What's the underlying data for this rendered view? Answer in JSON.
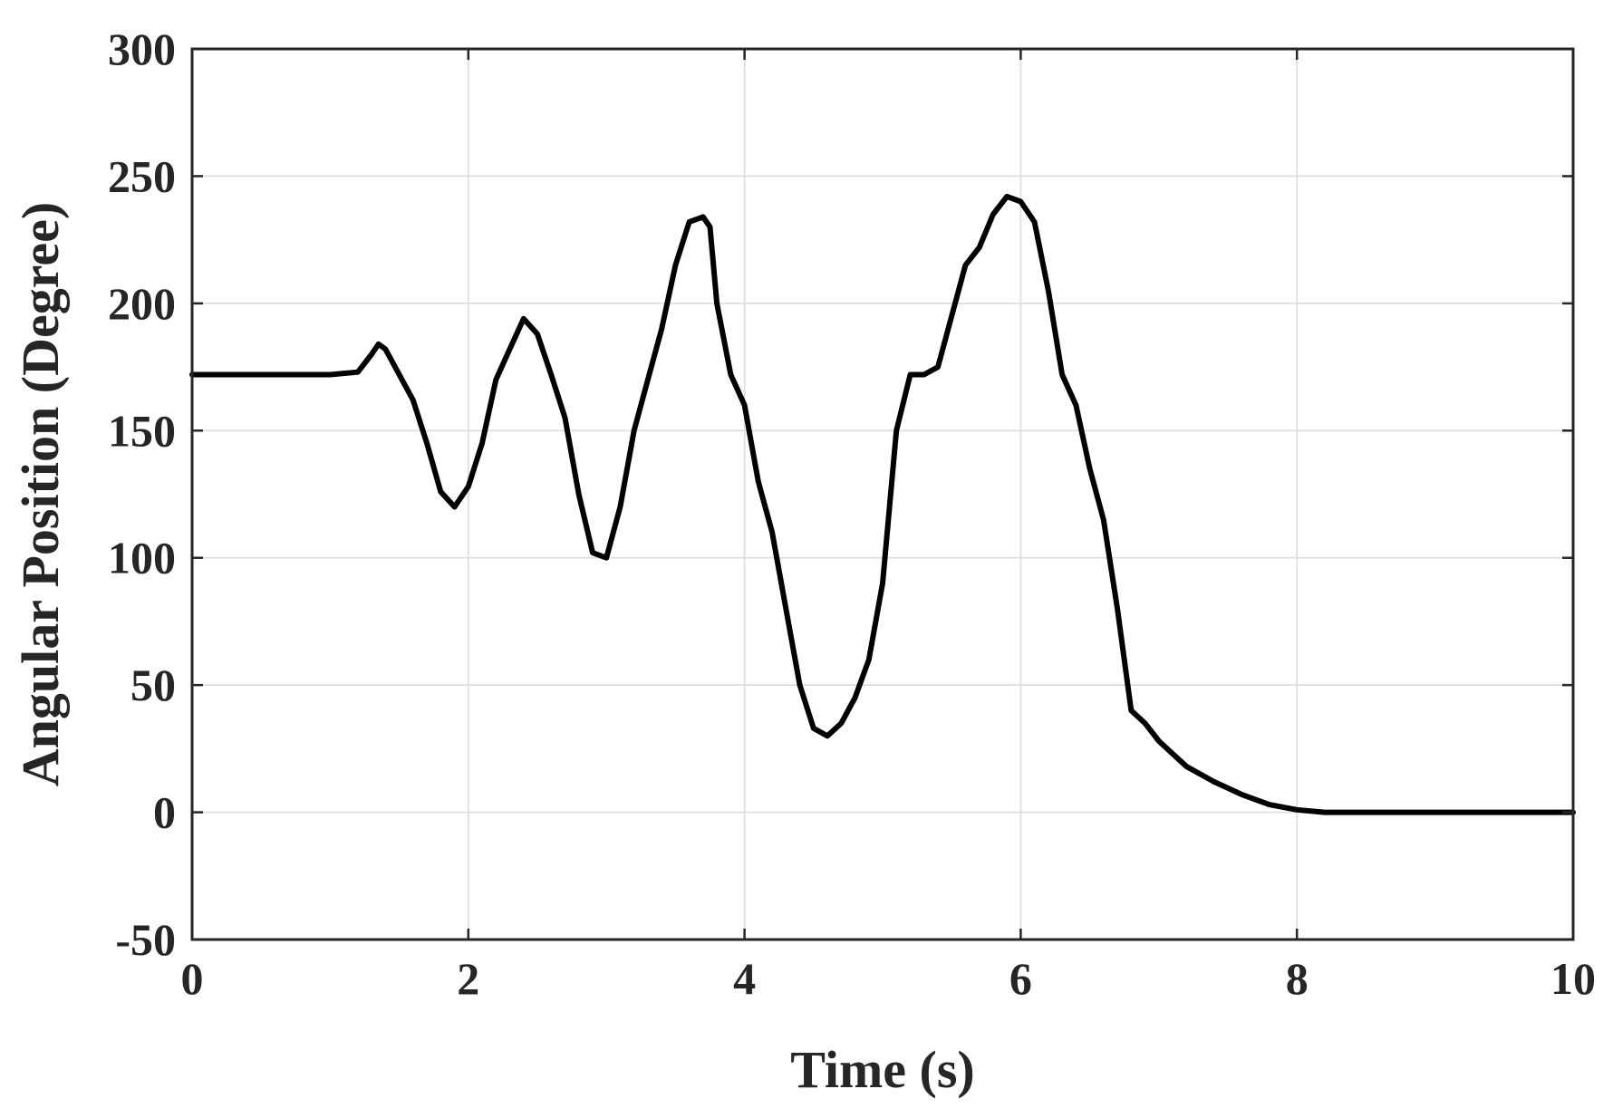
{
  "chart_data": {
    "type": "line",
    "title": "",
    "xlabel": "Time (s)",
    "ylabel": "Angular Position (Degree)",
    "xlim": [
      0,
      10
    ],
    "ylim": [
      -50,
      300
    ],
    "xticks": [
      0,
      2,
      4,
      6,
      8,
      10
    ],
    "yticks": [
      -50,
      0,
      50,
      100,
      150,
      200,
      250,
      300
    ],
    "xtick_labels": [
      "0",
      "2",
      "4",
      "6",
      "8",
      "10"
    ],
    "ytick_labels": [
      "-50",
      "0",
      "50",
      "100",
      "150",
      "200",
      "250",
      "300"
    ],
    "grid": true,
    "legend": "none",
    "series": [
      {
        "color": "#000000",
        "x": [
          0,
          0.5,
          1.0,
          1.2,
          1.3,
          1.35,
          1.4,
          1.5,
          1.6,
          1.7,
          1.8,
          1.9,
          2.0,
          2.1,
          2.2,
          2.3,
          2.4,
          2.5,
          2.6,
          2.7,
          2.8,
          2.9,
          3.0,
          3.1,
          3.2,
          3.3,
          3.4,
          3.5,
          3.6,
          3.7,
          3.75,
          3.8,
          3.9,
          4.0,
          4.1,
          4.2,
          4.3,
          4.4,
          4.5,
          4.6,
          4.7,
          4.8,
          4.9,
          5.0,
          5.1,
          5.2,
          5.3,
          5.4,
          5.5,
          5.6,
          5.7,
          5.8,
          5.9,
          6.0,
          6.1,
          6.2,
          6.3,
          6.4,
          6.5,
          6.6,
          6.7,
          6.8,
          6.9,
          7.0,
          7.2,
          7.4,
          7.6,
          7.8,
          8.0,
          8.2,
          8.5,
          9.0,
          9.5,
          10.0
        ],
        "y": [
          172,
          172,
          172,
          173,
          180,
          184,
          182,
          172,
          162,
          145,
          126,
          120,
          128,
          145,
          170,
          182,
          194,
          188,
          172,
          155,
          125,
          102,
          100,
          120,
          150,
          170,
          190,
          215,
          232,
          234,
          230,
          200,
          172,
          160,
          130,
          110,
          80,
          50,
          33,
          30,
          35,
          45,
          60,
          90,
          150,
          172,
          172,
          175,
          195,
          215,
          222,
          235,
          242,
          240,
          232,
          205,
          172,
          160,
          135,
          115,
          80,
          40,
          35,
          28,
          18,
          12,
          7,
          3,
          1,
          0,
          0,
          0,
          0,
          0
        ]
      }
    ]
  }
}
